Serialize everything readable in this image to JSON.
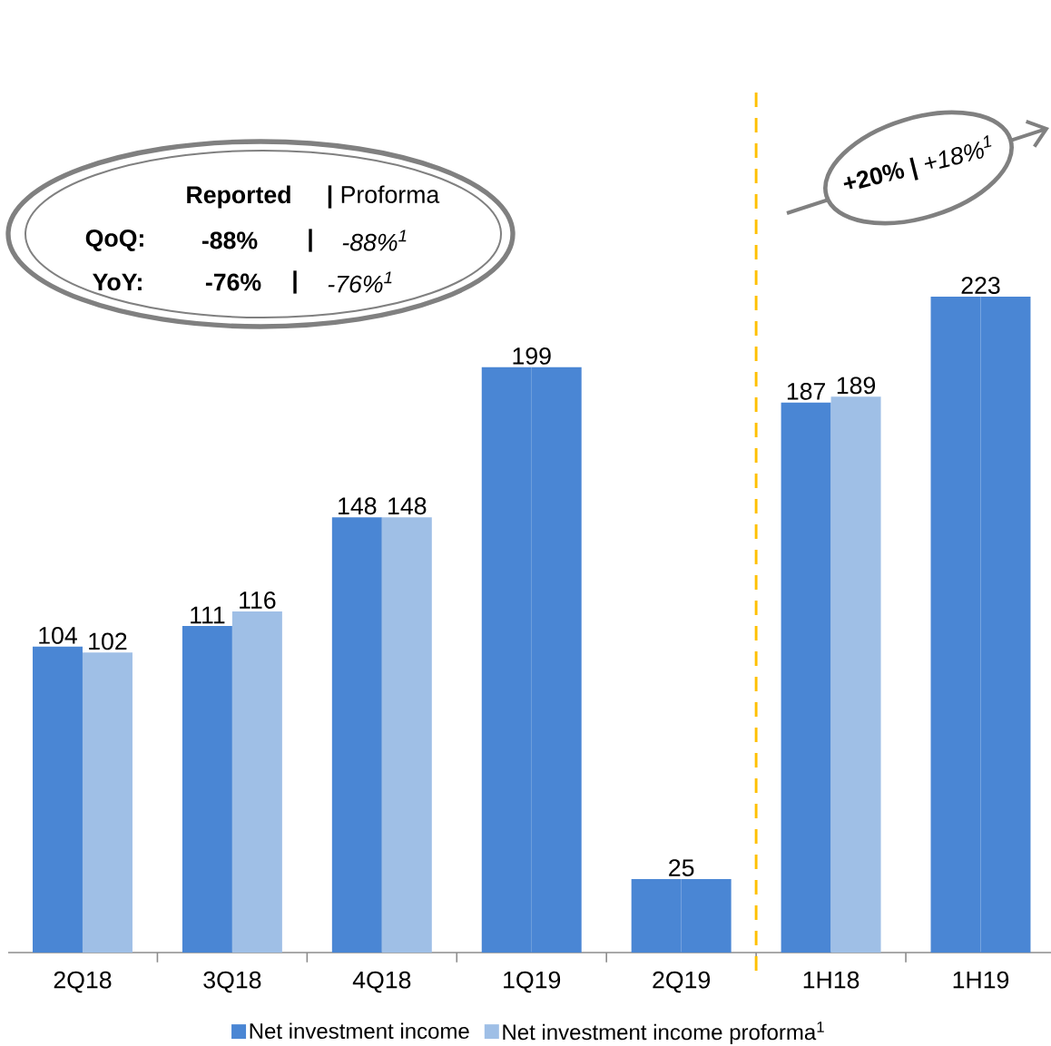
{
  "chart_data": {
    "type": "bar",
    "categories": [
      "2Q18",
      "3Q18",
      "4Q18",
      "1Q19",
      "2Q19",
      "1H18",
      "1H19"
    ],
    "series": [
      {
        "name": "Net investment income",
        "color": "#4a86d4",
        "values": [
          104,
          111,
          148,
          199,
          25,
          187,
          223
        ],
        "value_labels": [
          "104",
          "111",
          "148",
          "199",
          "25",
          "187",
          "223"
        ]
      },
      {
        "name": "Net investment income proforma$^{1}$",
        "color": "#9fbfe6",
        "colors": [
          "#9fbfe6",
          "#9fbfe6",
          "#9fbfe6",
          "#4a86d4",
          "#4a86d4",
          "#9fbfe6",
          "#4a86d4"
        ],
        "values": [
          102,
          116,
          148,
          199,
          25,
          189,
          223
        ],
        "value_labels": [
          "102",
          "116",
          "148",
          null,
          null,
          "189",
          null
        ]
      }
    ],
    "tick_labels": "x",
    "grid": false,
    "legend": "bottom",
    "annotations": [
      "Reported",
      "**|** Proforma",
      "QoQ:",
      "-88%",
      "|",
      "-88%$^{1}$",
      "YoY:",
      "-76%",
      "|",
      "-76%$^{1}$",
      "**+20% |** *+18%$^{1}$*"
    ]
  }
}
